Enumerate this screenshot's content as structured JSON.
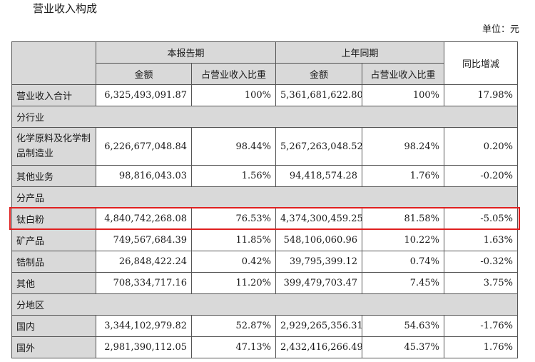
{
  "title": "营业收入构成",
  "unit": "单位：元",
  "header": {
    "current_period": "本报告期",
    "last_year": "上年同期",
    "yoy": "同比增减",
    "amount": "金额",
    "ratio": "占营业收入比重"
  },
  "rows": [
    {
      "label": "营业收入合计",
      "cur_amt": "6,325,493,091.87",
      "cur_pct": "100%",
      "prev_amt": "5,361,681,622.80",
      "prev_pct": "100%",
      "yoy": "17.98%"
    },
    {
      "section": "分行业"
    },
    {
      "label": "化学原料及化学制品制造业",
      "cur_amt": "6,226,677,048.84",
      "cur_pct": "98.44%",
      "prev_amt": "5,267,263,048.52",
      "prev_pct": "98.24%",
      "yoy": "0.20%"
    },
    {
      "label": "其他业务",
      "cur_amt": "98,816,043.03",
      "cur_pct": "1.56%",
      "prev_amt": "94,418,574.28",
      "prev_pct": "1.76%",
      "yoy": "-0.20%"
    },
    {
      "section": "分产品"
    },
    {
      "label": "钛白粉",
      "cur_amt": "4,840,742,268.08",
      "cur_pct": "76.53%",
      "prev_amt": "4,374,300,459.25",
      "prev_pct": "81.58%",
      "yoy": "-5.05%"
    },
    {
      "label": "矿产品",
      "cur_amt": "749,567,684.39",
      "cur_pct": "11.85%",
      "prev_amt": "548,106,060.96",
      "prev_pct": "10.22%",
      "yoy": "1.63%"
    },
    {
      "label": "锆制品",
      "cur_amt": "26,848,422.24",
      "cur_pct": "0.42%",
      "prev_amt": "39,795,399.12",
      "prev_pct": "0.74%",
      "yoy": "-0.32%"
    },
    {
      "label": "其他",
      "cur_amt": "708,334,717.16",
      "cur_pct": "11.20%",
      "prev_amt": "399,479,703.47",
      "prev_pct": "7.45%",
      "yoy": "3.75%"
    },
    {
      "section": "分地区"
    },
    {
      "label": "国内",
      "cur_amt": "3,344,102,979.82",
      "cur_pct": "52.87%",
      "prev_amt": "2,929,265,356.31",
      "prev_pct": "54.63%",
      "yoy": "-1.76%"
    },
    {
      "label": "国外",
      "cur_amt": "2,981,390,112.05",
      "cur_pct": "47.13%",
      "prev_amt": "2,432,416,266.49",
      "prev_pct": "45.37%",
      "yoy": "1.76%"
    }
  ]
}
